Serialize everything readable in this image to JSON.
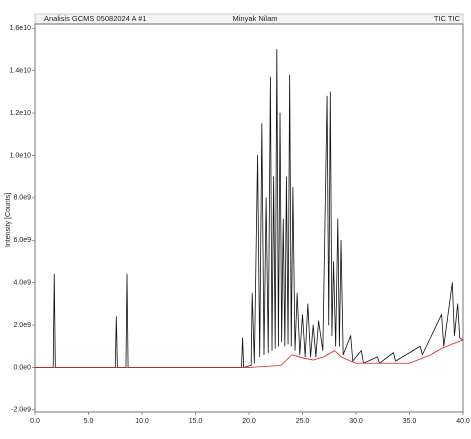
{
  "chart_data": {
    "type": "line",
    "header_left": "Analisis GCMS 05082024 A #1",
    "title": "Minyak Nilam",
    "header_right": "TIC TIC",
    "ylabel": "Intensity [Counts]",
    "xlim": [
      0,
      40
    ],
    "xticks": [
      {
        "value": 0,
        "label": "0.0"
      },
      {
        "value": 5,
        "label": "5.0"
      },
      {
        "value": 10,
        "label": "10.0"
      },
      {
        "value": 15,
        "label": "15.0"
      },
      {
        "value": 20,
        "label": "20.0"
      },
      {
        "value": 25,
        "label": "25.0"
      },
      {
        "value": 30,
        "label": "30.0"
      },
      {
        "value": 35,
        "label": "35.0"
      },
      {
        "value": 40,
        "label": "40.0"
      }
    ],
    "ylim": [
      -2100000000.0,
      16200000000.0
    ],
    "yticks": [
      {
        "value": -2000000000.0,
        "label": "-2.0e9"
      },
      {
        "value": 0,
        "label": "0.0e0"
      },
      {
        "value": 2000000000.0,
        "label": "2.0e9"
      },
      {
        "value": 4000000000.0,
        "label": "4.0e9"
      },
      {
        "value": 6000000000.0,
        "label": "6.0e9"
      },
      {
        "value": 8000000000.0,
        "label": "8.0e9"
      },
      {
        "value": 10000000000.0,
        "label": "1.0e10"
      },
      {
        "value": 12000000000.0,
        "label": "1.2e10"
      },
      {
        "value": 14000000000.0,
        "label": "1.4e10"
      },
      {
        "value": 16000000000.0,
        "label": "1.6e10"
      }
    ],
    "series": [
      {
        "color": "#111111",
        "x": [
          0,
          1.7,
          1.8,
          1.9,
          7.5,
          7.6,
          7.7,
          8.5,
          8.6,
          8.7,
          19.3,
          19.4,
          19.5,
          20.2,
          20.3,
          20.5,
          20.8,
          21.0,
          21.2,
          21.4,
          21.6,
          21.8,
          22.0,
          22.15,
          22.3,
          22.45,
          22.6,
          22.75,
          22.9,
          23.05,
          23.2,
          23.35,
          23.5,
          23.65,
          23.8,
          23.95,
          24.1,
          24.3,
          24.5,
          24.75,
          25.0,
          25.25,
          25.5,
          25.75,
          26.0,
          26.25,
          26.5,
          26.9,
          27.3,
          27.45,
          27.6,
          27.75,
          27.9,
          28.1,
          28.3,
          28.45,
          28.6,
          28.8,
          29.5,
          29.7,
          30.5,
          30.7,
          32.0,
          32.2,
          33.5,
          33.7,
          36.0,
          36.2,
          38.0,
          38.2,
          39.0,
          39.2,
          39.5,
          39.7,
          40
        ],
        "values": [
          0,
          0,
          4400000000.0,
          0,
          0,
          2400000000.0,
          0,
          0,
          4400000000.0,
          0,
          0,
          1400000000.0,
          0,
          100000000.0,
          3500000000.0,
          200000000.0,
          10000000000.0,
          500000000.0,
          11500000000.0,
          600000000.0,
          8000000000.0,
          700000000.0,
          13700000000.0,
          800000000.0,
          9000000000.0,
          900000000.0,
          15000000000.0,
          1000000000.0,
          12000000000.0,
          1200000000.0,
          7000000000.0,
          1000000000.0,
          9000000000.0,
          1100000000.0,
          13800000000.0,
          1000000000.0,
          8500000000.0,
          800000000.0,
          3500000000.0,
          600000000.0,
          2500000000.0,
          500000000.0,
          3000000000.0,
          500000000.0,
          2000000000.0,
          500000000.0,
          2200000000.0,
          800000000.0,
          12800000000.0,
          2000000000.0,
          13000000000.0,
          1500000000.0,
          5000000000.0,
          1000000000.0,
          7000000000.0,
          1000000000.0,
          6000000000.0,
          600000000.0,
          1500000000.0,
          300000000.0,
          800000000.0,
          200000000.0,
          500000000.0,
          200000000.0,
          700000000.0,
          300000000.0,
          1000000000.0,
          600000000.0,
          2500000000.0,
          1000000000.0,
          4000000000.0,
          1500000000.0,
          3000000000.0,
          1400000000.0,
          1300000000.0
        ]
      },
      {
        "color": "#e0201b",
        "x": [
          0,
          20,
          23,
          24,
          25,
          26,
          27,
          28,
          28.6,
          29.5,
          30,
          35,
          37,
          38,
          40
        ],
        "values": [
          0,
          0,
          100000000.0,
          600000000.0,
          450000000.0,
          350000000.0,
          500000000.0,
          800000000.0,
          500000000.0,
          300000000.0,
          200000000.0,
          200000000.0,
          600000000.0,
          900000000.0,
          1300000000.0
        ]
      }
    ]
  }
}
